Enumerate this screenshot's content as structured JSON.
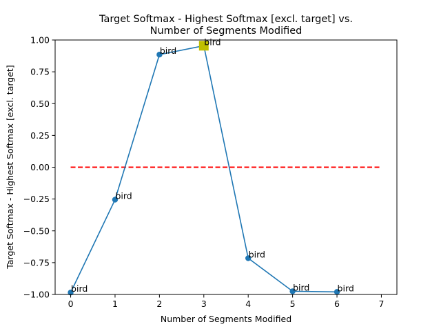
{
  "chart_data": {
    "type": "line",
    "title_line1": "Target Softmax - Highest Softmax [excl. target] vs.",
    "title_line2": "Number of Segments Modified",
    "xlabel": "Number of Segments Modified",
    "ylabel": "Target Softmax - Highest Softmax [excl. target]",
    "xlim": [
      -0.35,
      7.35
    ],
    "ylim": [
      -1.0,
      1.0
    ],
    "x_ticks": [
      0,
      1,
      2,
      3,
      4,
      5,
      6,
      7
    ],
    "x_tick_labels": [
      "0",
      "1",
      "2",
      "3",
      "4",
      "5",
      "6",
      "7"
    ],
    "y_ticks": [
      -1.0,
      -0.75,
      -0.5,
      -0.25,
      0.0,
      0.25,
      0.5,
      0.75,
      1.0
    ],
    "y_tick_labels": [
      "−1.00",
      "−0.75",
      "−0.50",
      "−0.25",
      "0.00",
      "0.25",
      "0.50",
      "0.75",
      "1.00"
    ],
    "grid": false,
    "series": [
      {
        "color": "#1f77b4",
        "marker": "circle",
        "x": [
          0,
          1,
          2,
          3,
          4,
          5,
          6
        ],
        "y": [
          -0.985,
          -0.255,
          0.885,
          0.955,
          -0.715,
          -0.975,
          -0.98
        ],
        "point_labels": [
          "bird",
          "bird",
          "bird",
          "bird",
          "bird",
          "bird",
          "bird"
        ]
      }
    ],
    "reference_line": {
      "y": 0.0,
      "x_range": [
        0,
        7
      ],
      "color": "#ff0000",
      "style": "dashed"
    },
    "highlight_point": {
      "x": 3,
      "y": 0.955,
      "color": "#bfbf00",
      "marker": "square"
    }
  }
}
